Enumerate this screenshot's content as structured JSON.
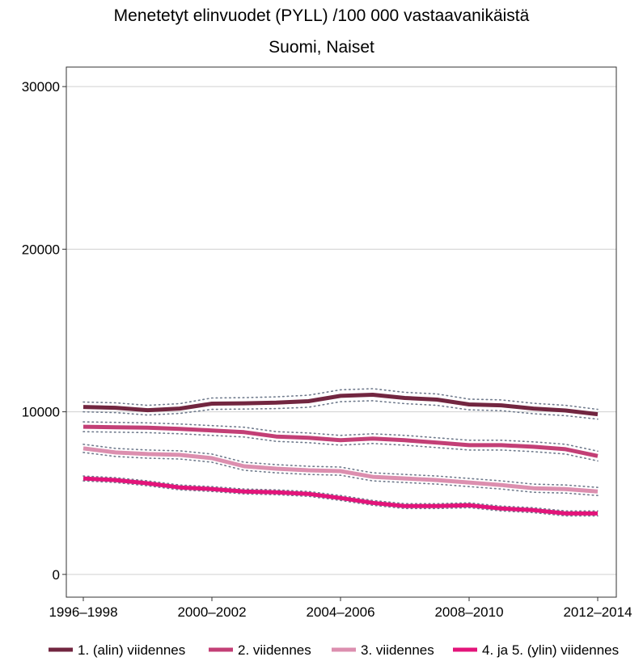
{
  "chart_data": {
    "type": "line",
    "title": "Menetetyt elinvuodet (PYLL) /100 000 vastaavanikäistä",
    "subtitle": "Suomi, Naiset",
    "xlabel": "",
    "ylabel": "",
    "x_ticks": [
      "1996–1998",
      "2000–2002",
      "2004–2006",
      "2008–2010",
      "2012–2014"
    ],
    "x_periods": [
      "1996-1998",
      "1997-1999",
      "1998-2000",
      "1999-2001",
      "2000-2002",
      "2001-2003",
      "2002-2004",
      "2003-2005",
      "2004-2006",
      "2005-2007",
      "2006-2008",
      "2007-2009",
      "2008-2010",
      "2009-2011",
      "2010-2012",
      "2011-2013",
      "2012-2014"
    ],
    "y_ticks": [
      0,
      10000,
      20000,
      30000
    ],
    "ylim": [
      -1400,
      31200
    ],
    "grid": "horizontal",
    "legend_position": "bottom",
    "series": [
      {
        "name": "1. (alin) viidennes",
        "color": "#722640",
        "values": [
          10300,
          10250,
          10100,
          10200,
          10500,
          10520,
          10560,
          10650,
          10980,
          11050,
          10850,
          10750,
          10450,
          10400,
          10200,
          10080,
          9850
        ],
        "ci_upper": [
          10600,
          10550,
          10400,
          10500,
          10850,
          10870,
          10920,
          11020,
          11350,
          11420,
          11200,
          11100,
          10780,
          10730,
          10520,
          10400,
          10150
        ],
        "ci_lower": [
          10000,
          9950,
          9800,
          9900,
          10150,
          10170,
          10200,
          10280,
          10620,
          10680,
          10500,
          10400,
          10120,
          10070,
          9880,
          9760,
          9550
        ]
      },
      {
        "name": "2. viidennes",
        "color": "#c33f76",
        "values": [
          9080,
          9050,
          9020,
          8950,
          8850,
          8750,
          8480,
          8400,
          8250,
          8350,
          8250,
          8100,
          7950,
          7950,
          7850,
          7700,
          7280
        ],
        "ci_upper": [
          9380,
          9350,
          9320,
          9250,
          9150,
          9050,
          8780,
          8700,
          8550,
          8650,
          8550,
          8400,
          8250,
          8250,
          8150,
          8000,
          7580
        ],
        "ci_lower": [
          8780,
          8750,
          8720,
          8650,
          8550,
          8450,
          8180,
          8100,
          7950,
          8050,
          7950,
          7800,
          7650,
          7650,
          7550,
          7400,
          6980
        ]
      },
      {
        "name": "3. viidennes",
        "color": "#dc8faf",
        "values": [
          7750,
          7500,
          7400,
          7350,
          7150,
          6650,
          6500,
          6400,
          6350,
          6000,
          5900,
          5800,
          5650,
          5500,
          5300,
          5250,
          5100
        ],
        "ci_upper": [
          8000,
          7750,
          7650,
          7600,
          7400,
          6900,
          6750,
          6650,
          6600,
          6250,
          6150,
          6050,
          5900,
          5750,
          5550,
          5500,
          5350
        ],
        "ci_lower": [
          7500,
          7250,
          7150,
          7100,
          6900,
          6400,
          6250,
          6150,
          6100,
          5750,
          5650,
          5550,
          5400,
          5250,
          5050,
          5000,
          4850
        ]
      },
      {
        "name": "4. ja 5. (ylin) viidennes",
        "color": "#e3147a",
        "values": [
          5900,
          5800,
          5600,
          5350,
          5250,
          5100,
          5050,
          4950,
          4700,
          4400,
          4200,
          4200,
          4250,
          4050,
          3950,
          3750,
          3750
        ],
        "ci_upper": [
          6050,
          5950,
          5750,
          5500,
          5400,
          5250,
          5200,
          5100,
          4850,
          4550,
          4350,
          4350,
          4400,
          4200,
          4100,
          3900,
          3900
        ],
        "ci_lower": [
          5750,
          5650,
          5450,
          5200,
          5100,
          4950,
          4900,
          4800,
          4550,
          4250,
          4050,
          4050,
          4100,
          3900,
          3800,
          3600,
          3600
        ]
      }
    ]
  }
}
